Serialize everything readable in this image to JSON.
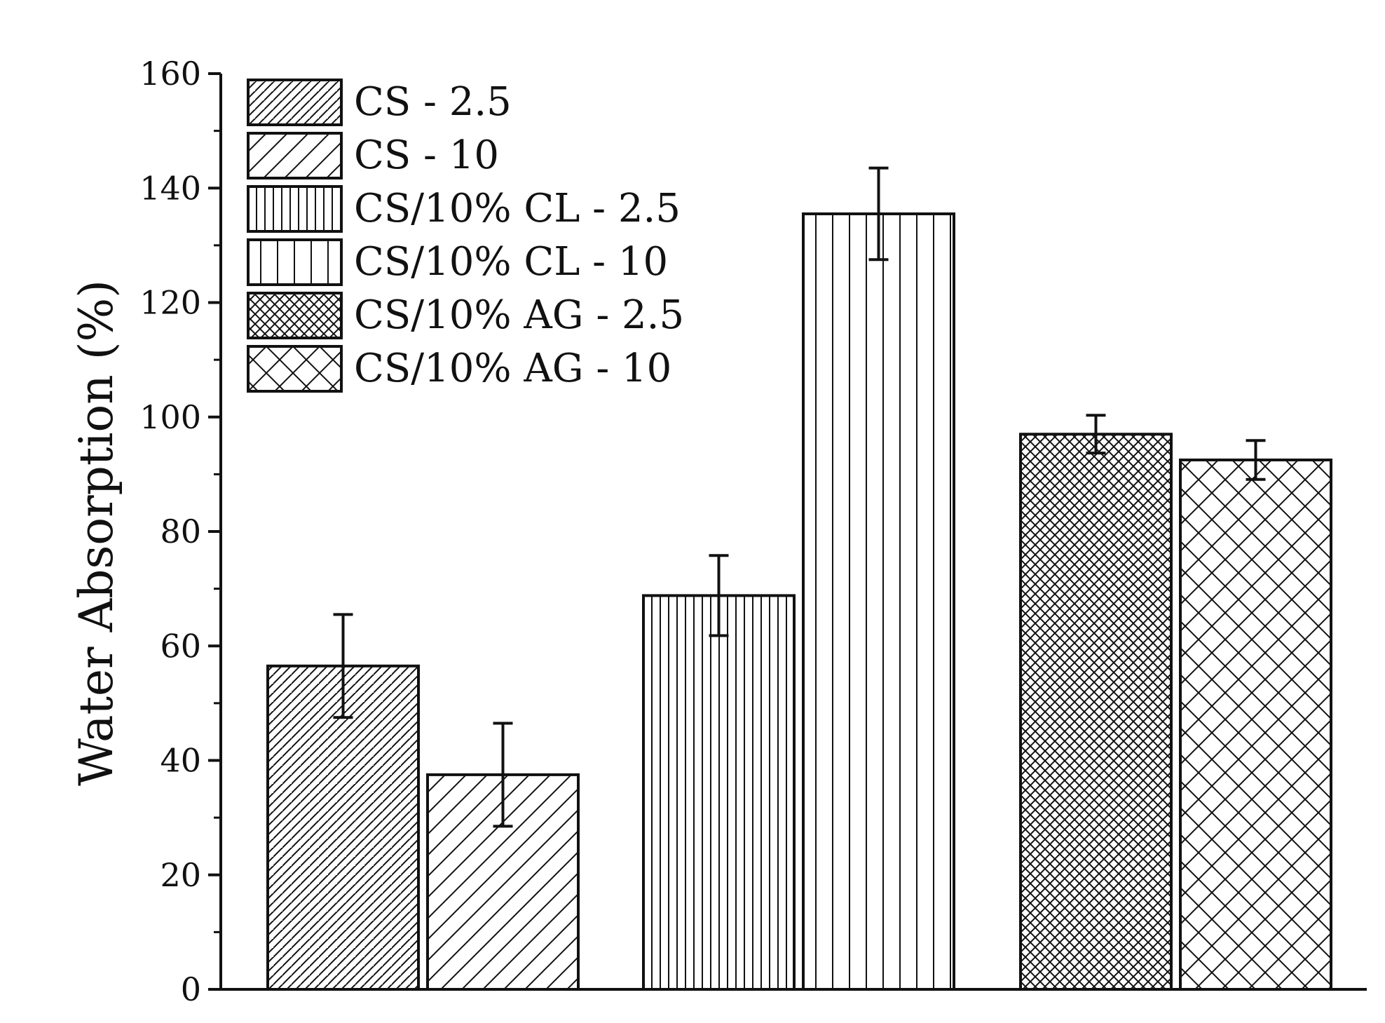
{
  "chart_data": {
    "type": "bar",
    "title": "",
    "xlabel": "",
    "ylabel": "Water Absorption (%)",
    "ylim": [
      0,
      160
    ],
    "yticks": [
      "0",
      "20",
      "40",
      "60",
      "80",
      "100",
      "120",
      "140",
      "160"
    ],
    "legend_position": "top-left",
    "grid": false,
    "series": [
      {
        "name": "CS - 2.5",
        "value": 56.5,
        "error": 9,
        "pattern": "diag-dense"
      },
      {
        "name": "CS - 10",
        "value": 37.5,
        "error": 9,
        "pattern": "diag-sparse"
      },
      {
        "name": "CS/10% CL - 2.5",
        "value": 68.8,
        "error": 7,
        "pattern": "vert-dense"
      },
      {
        "name": "CS/10% CL - 10",
        "value": 135.5,
        "error": 8,
        "pattern": "vert-sparse"
      },
      {
        "name": "CS/10% AG - 2.5",
        "value": 97,
        "error": 3.3,
        "pattern": "cross-dense"
      },
      {
        "name": "CS/10% AG - 10",
        "value": 92.5,
        "error": 3.4,
        "pattern": "cross-sparse"
      }
    ]
  }
}
